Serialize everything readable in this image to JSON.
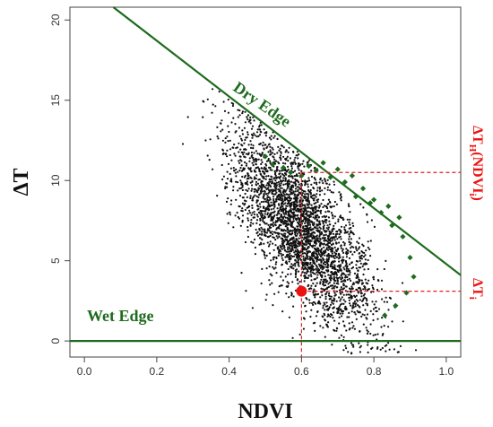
{
  "chart_data": {
    "type": "scatter",
    "title": "",
    "xlabel": "NDVI",
    "ylabel": "ΔT",
    "xlim": [
      -0.04,
      1.04
    ],
    "ylim": [
      -1.0,
      20.8
    ],
    "x_ticks": [
      "0.0",
      "0.2",
      "0.4",
      "0.6",
      "0.8",
      "1.0"
    ],
    "x_tick_values": [
      0.0,
      0.2,
      0.4,
      0.6,
      0.8,
      1.0
    ],
    "y_ticks": [
      "0",
      "5",
      "10",
      "15",
      "20"
    ],
    "y_tick_values": [
      0,
      5,
      10,
      15,
      20
    ],
    "grid": false,
    "lines": [
      {
        "label": "Dry Edge",
        "x": [
          0.08,
          1.04
        ],
        "y": [
          20.8,
          4.1
        ],
        "color": "#1e6b1e"
      },
      {
        "label": "Wet Edge",
        "x": [
          -0.04,
          1.04
        ],
        "y": [
          0.0,
          0.0
        ],
        "color": "#1e6b1e"
      }
    ],
    "cloud": {
      "description_for_generation": "dense pixel cloud",
      "center": [
        0.6,
        7.0
      ],
      "count": 3200,
      "color": "#111111"
    },
    "upper_envelope_points": {
      "color": "#1e6b1e",
      "x": [
        0.5,
        0.52,
        0.55,
        0.57,
        0.6,
        0.62,
        0.64,
        0.66,
        0.68,
        0.7,
        0.72,
        0.74,
        0.75,
        0.77,
        0.79,
        0.8,
        0.82,
        0.84,
        0.85,
        0.87,
        0.88,
        0.9,
        0.91,
        0.89,
        0.86,
        0.83
      ],
      "y": [
        11.5,
        11.0,
        10.8,
        10.5,
        10.3,
        10.9,
        10.6,
        11.1,
        10.2,
        10.7,
        9.9,
        10.3,
        9.0,
        9.5,
        8.6,
        8.8,
        8.0,
        8.4,
        7.2,
        7.7,
        6.5,
        5.2,
        4.0,
        3.0,
        2.2,
        1.6
      ]
    },
    "highlight_point": {
      "x": 0.6,
      "y": 3.1,
      "color": "#ee1111"
    },
    "reference_lines": {
      "color": "#dd2222",
      "x": 0.6,
      "y_low": 3.1,
      "y_high": 10.5
    },
    "annotations": {
      "dry_edge": "Dry Edge",
      "wet_edge": "Wet Edge",
      "upper_label_base": "ΔT",
      "upper_label_sub": "H",
      "upper_label_rest": "(NDVI",
      "upper_label_sub2": "i",
      "upper_label_close": ")",
      "lower_label_base": "ΔT",
      "lower_label_sub": "i"
    }
  }
}
